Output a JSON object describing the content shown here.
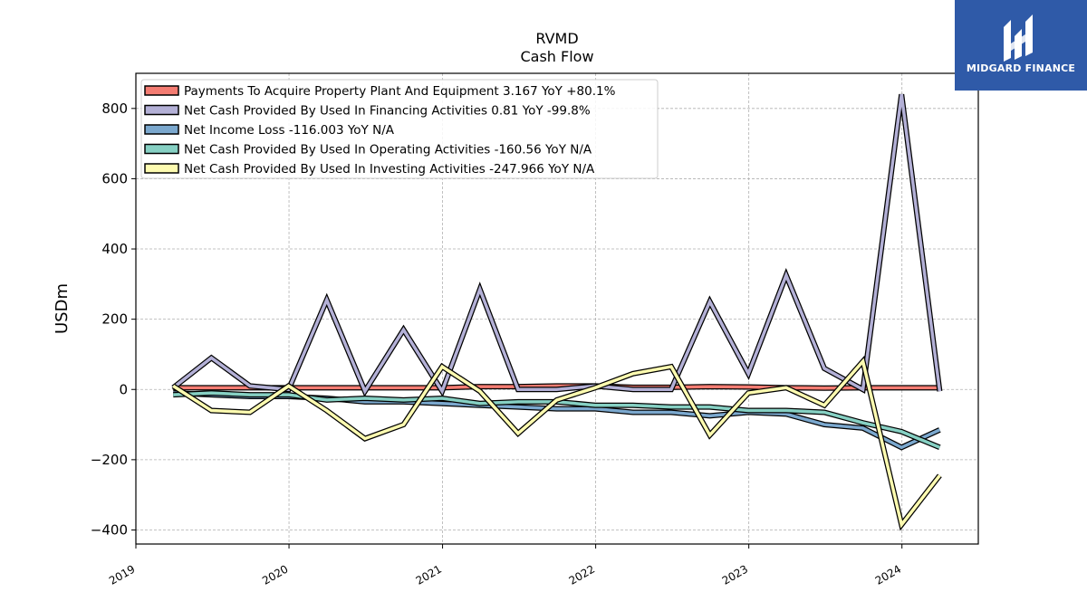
{
  "chart_data": {
    "type": "line",
    "title": "RVMD",
    "subtitle": "Cash Flow",
    "xlabel": "",
    "ylabel": "USDm",
    "xlim": [
      "2019-01-01",
      "2024-07-01"
    ],
    "ylim": [
      -440,
      900
    ],
    "x_ticks": [
      "2019",
      "2020",
      "2021",
      "2022",
      "2023",
      "2024"
    ],
    "y_ticks": [
      -400,
      -200,
      0,
      200,
      400,
      600,
      800
    ],
    "y_tick_labels": [
      "−400",
      "−200",
      "0",
      "200",
      "400",
      "600",
      "800"
    ],
    "grid": true,
    "legend_position": "top-left",
    "x": [
      "2019-03-31",
      "2019-06-30",
      "2019-09-30",
      "2019-12-31",
      "2020-03-31",
      "2020-06-30",
      "2020-09-30",
      "2020-12-31",
      "2021-03-31",
      "2021-06-30",
      "2021-09-30",
      "2021-12-31",
      "2022-03-31",
      "2022-06-30",
      "2022-09-30",
      "2022-12-31",
      "2023-03-31",
      "2023-06-30",
      "2023-09-30",
      "2023-12-31",
      "2024-03-31"
    ],
    "series": [
      {
        "name": "Payments To Acquire Property Plant And Equipment",
        "legend_label": "Payments To Acquire Property Plant And Equipment  3.167 YoY +80.1%",
        "color": "#f47c72",
        "values": [
          5,
          5,
          5,
          5,
          5,
          5,
          5,
          5,
          8,
          8,
          10,
          10,
          6,
          6,
          8,
          7,
          5,
          4,
          5,
          5,
          5
        ]
      },
      {
        "name": "Net Cash Provided By Used In Financing Activities",
        "legend_label": "Net Cash Provided By Used In Financing Activities  0.81 YoY -99.8%",
        "color": "#b3b0d6",
        "values": [
          5,
          90,
          10,
          0,
          255,
          -5,
          170,
          -5,
          285,
          0,
          0,
          10,
          0,
          0,
          250,
          45,
          325,
          60,
          0,
          840,
          -5
        ]
      },
      {
        "name": "Net Income Loss",
        "legend_label": "Net Income Loss  -116.003 YoY N/A",
        "color": "#7ba8ce",
        "values": [
          -10,
          -15,
          -20,
          -20,
          -25,
          -35,
          -35,
          -40,
          -45,
          -50,
          -55,
          -55,
          -65,
          -65,
          -75,
          -65,
          -70,
          -100,
          -110,
          -165,
          -115
        ]
      },
      {
        "name": "Net Cash Provided By Used In Operating Activities",
        "legend_label": "Net Cash Provided By Used In Operating Activities  -160.56 YoY N/A",
        "color": "#86d0c3",
        "values": [
          -15,
          -10,
          -15,
          -15,
          -30,
          -25,
          -30,
          -25,
          -40,
          -35,
          -35,
          -45,
          -45,
          -50,
          -50,
          -60,
          -60,
          -65,
          -95,
          -120,
          -165
        ]
      },
      {
        "name": "Net Cash Provided By Used In Investing Activities",
        "legend_label": "Net Cash Provided By Used In Investing Activities  -247.966 YoY N/A",
        "color": "#fdfbb0",
        "values": [
          10,
          -60,
          -65,
          10,
          -60,
          -140,
          -100,
          65,
          -5,
          -125,
          -30,
          5,
          45,
          65,
          -130,
          -10,
          5,
          -45,
          80,
          -385,
          -245
        ]
      }
    ]
  },
  "logo": {
    "text": "MIDGARD FINANCE",
    "color": "#2f5aa8"
  }
}
